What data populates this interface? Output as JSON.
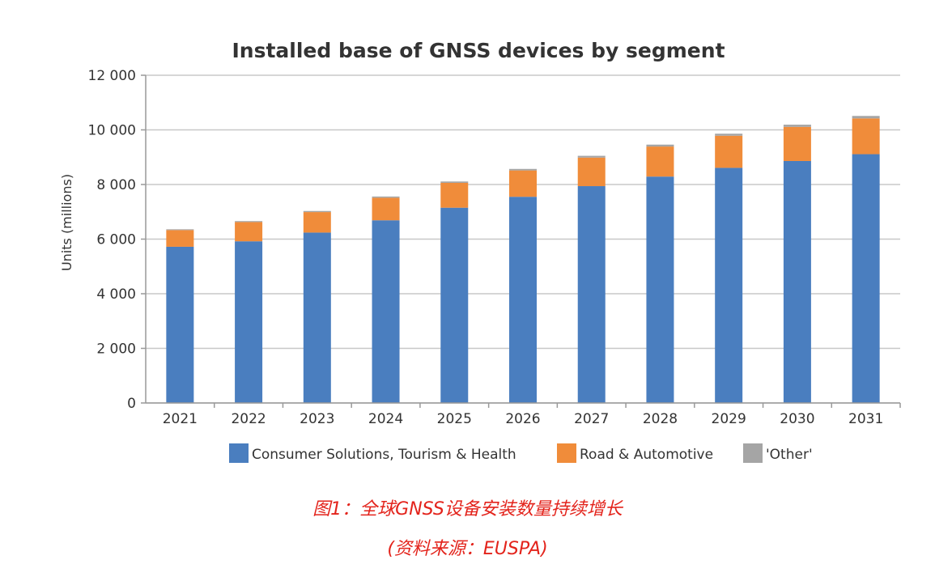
{
  "chart_data": {
    "type": "bar",
    "stacked": true,
    "title": "Installed base of GNSS devices by segment",
    "xlabel": "",
    "ylabel": "Units (millions)",
    "ylim": [
      0,
      12000
    ],
    "yticks": [
      0,
      2000,
      4000,
      6000,
      8000,
      10000,
      12000
    ],
    "ytick_labels": [
      "0",
      "2 000",
      "4 000",
      "6 000",
      "8 000",
      "10 000",
      "12 000"
    ],
    "grid": true,
    "legend_position": "bottom",
    "categories": [
      "2021",
      "2022",
      "2023",
      "2024",
      "2025",
      "2026",
      "2027",
      "2028",
      "2029",
      "2030",
      "2031"
    ],
    "series": [
      {
        "name": "Consumer Solutions, Tourism & Health",
        "color": "#4a7ebf",
        "values": [
          5720,
          5920,
          6240,
          6690,
          7150,
          7550,
          7940,
          8290,
          8610,
          8860,
          9110
        ]
      },
      {
        "name": "Road & Automotive",
        "color": "#f08c3a",
        "values": [
          610,
          705,
          750,
          825,
          910,
          965,
          1045,
          1100,
          1175,
          1250,
          1310
        ]
      },
      {
        "name": "'Other'",
        "color": "#a5a5a5",
        "values": [
          30,
          35,
          40,
          45,
          50,
          55,
          65,
          70,
          75,
          80,
          90
        ]
      }
    ]
  },
  "caption": {
    "line1": "图1：全球GNSS设备安装数量持续增长",
    "line2": "(资料来源：EUSPA)",
    "color": "#e3231b"
  }
}
